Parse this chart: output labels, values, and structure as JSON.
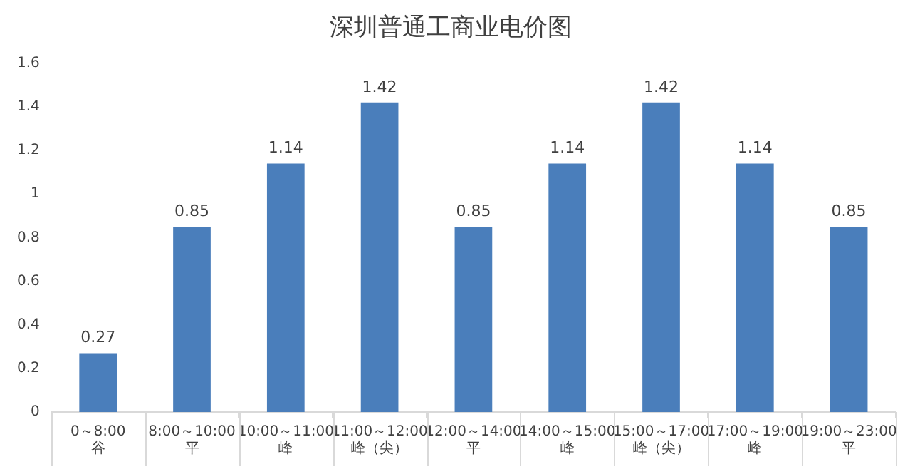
{
  "chart_data": {
    "type": "bar",
    "title": "深圳普通工商业电价图",
    "categories": [
      "0～8:00\n谷",
      "8:00～10:00\n平",
      "10:00～11:00\n峰",
      "11:00～12:00\n峰（尖）",
      "12:00～14:00\n平",
      "14:00～15:00\n峰",
      "15:00～17:00\n峰（尖）",
      "17:00～19:00\n峰",
      "19:00～23:00\n平"
    ],
    "values": [
      0.27,
      0.85,
      1.14,
      1.42,
      0.85,
      1.14,
      1.42,
      1.14,
      0.85
    ],
    "color": "#4a7ebb",
    "data_labels": true,
    "grid": false,
    "legend": false,
    "ylim": [
      0,
      1.6
    ],
    "yticks": [
      0,
      0.2,
      0.4,
      0.6,
      0.8,
      1,
      1.2,
      1.4,
      1.6
    ]
  }
}
